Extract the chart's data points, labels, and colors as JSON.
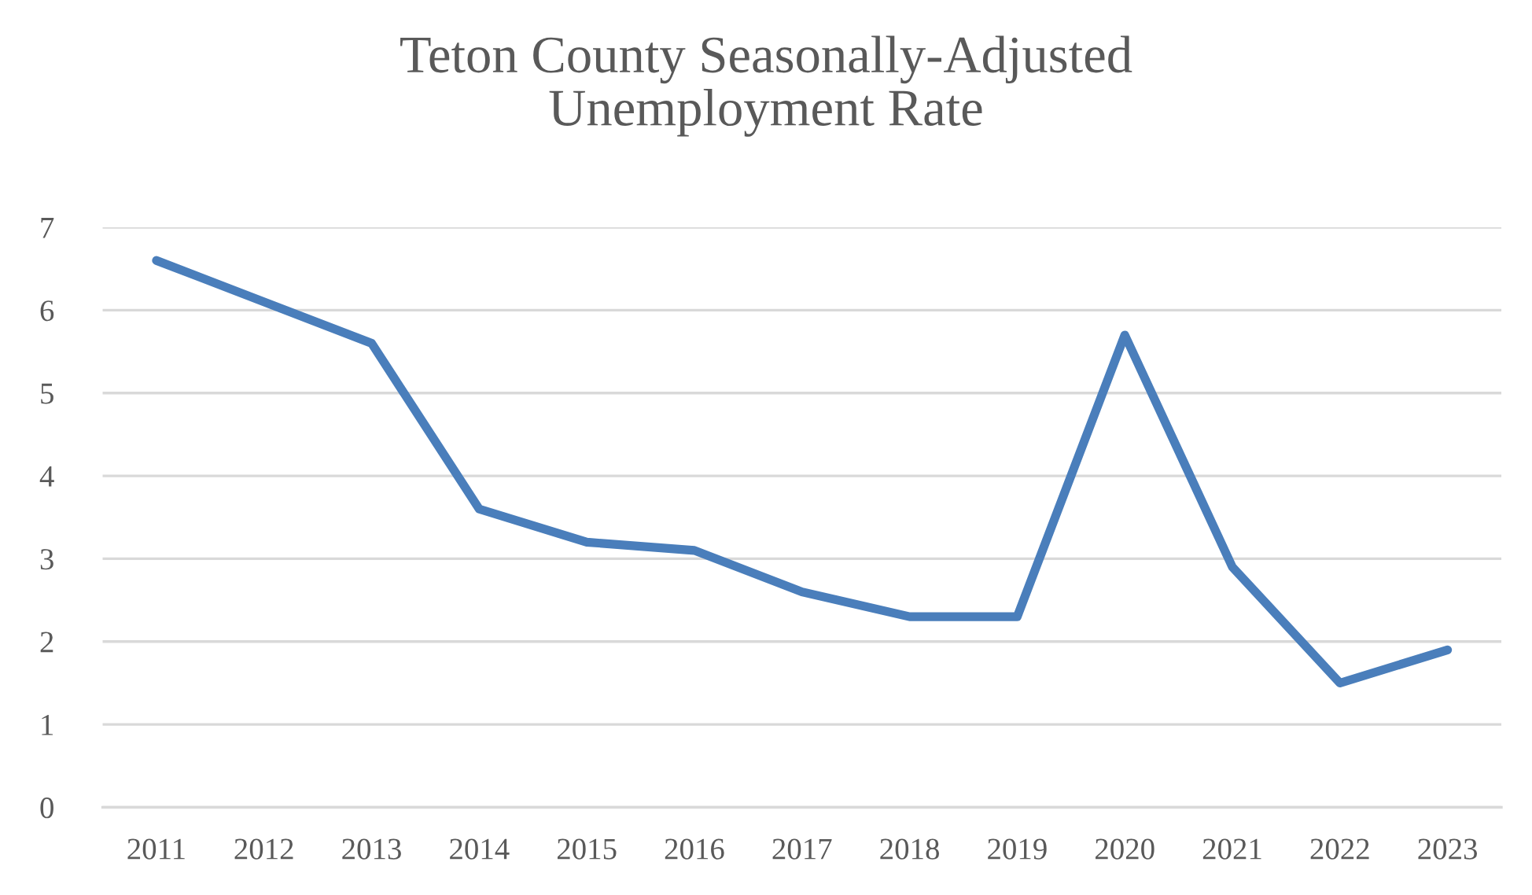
{
  "chart_data": {
    "type": "line",
    "title": "Teton County Seasonally-Adjusted\nUnemployment Rate",
    "categories": [
      "2011",
      "2012",
      "2013",
      "2014",
      "2015",
      "2016",
      "2017",
      "2018",
      "2019",
      "2020",
      "2021",
      "2022",
      "2023"
    ],
    "series": [
      {
        "color": "#4a7ebb",
        "values": [
          6.6,
          6.1,
          5.6,
          3.6,
          3.2,
          3.1,
          2.6,
          2.3,
          2.3,
          5.7,
          2.9,
          1.5,
          1.9
        ]
      }
    ],
    "ylim": [
      0,
      7
    ],
    "yticks": [
      0,
      1,
      2,
      3,
      4,
      5,
      6,
      7
    ],
    "grid": "y",
    "marker": "none",
    "line_style": "solid"
  }
}
